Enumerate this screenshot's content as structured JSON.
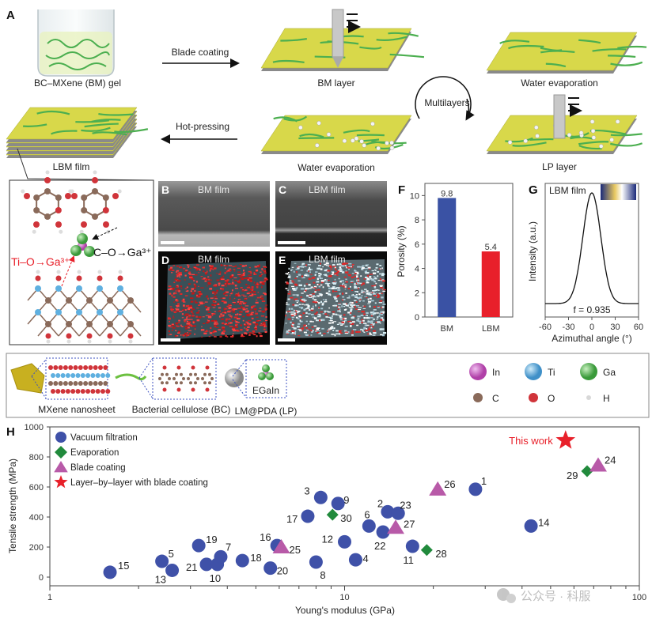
{
  "panel_letters": {
    "A": "A",
    "B": "B",
    "C": "C",
    "D": "D",
    "E": "E",
    "F": "F",
    "G": "G",
    "H": "H"
  },
  "panel_a": {
    "gel_label": "BC–MXene (BM) gel",
    "blade_coating": "Blade coating",
    "bm_layer": "BM layer",
    "water_evaporation_top": "Water evaporation",
    "multilayers": "Multilayers",
    "lp_layer": "LP layer",
    "water_evaporation_mid": "Water evaporation",
    "hot_pressing": "Hot-pressing",
    "lbm_film": "LBM film",
    "c_o_ga": "C–O→Ga³⁺",
    "ti_o_ga": "Ti–O→Ga³⁺",
    "colors": {
      "film": "#d8d84a",
      "fiber": "#4caf50",
      "base": "#8a8a8a",
      "ti_o_text": "#e8202a"
    }
  },
  "images": {
    "B": {
      "label": "BM film"
    },
    "C": {
      "label": "LBM film"
    },
    "D": {
      "label": "BM film"
    },
    "E": {
      "label": "LBM film"
    }
  },
  "legend_row": {
    "mxene": "MXene nanosheet",
    "bc": "Bacterial cellulose (BC)",
    "egain": "EGaIn",
    "lp": "LM@PDA (LP)",
    "atoms": [
      {
        "symbol": "In",
        "color": "#c85bc0"
      },
      {
        "symbol": "Ti",
        "color": "#5fb0e0"
      },
      {
        "symbol": "Ga",
        "color": "#5cbf5c"
      },
      {
        "symbol": "C",
        "color": "#8a6a5a"
      },
      {
        "symbol": "O",
        "color": "#d0343a"
      },
      {
        "symbol": "H",
        "color": "#d8d8d8"
      }
    ]
  },
  "watermark": "公众号 · 科服",
  "chart_data": [
    {
      "panel": "F",
      "type": "bar",
      "categories": [
        "BM",
        "LBM"
      ],
      "values": [
        9.8,
        5.4
      ],
      "data_labels": [
        "9.8",
        "5.4"
      ],
      "colors": [
        "#3a52a4",
        "#e8202a"
      ],
      "ylabel": "Porosity (%)",
      "ylim": [
        0,
        11
      ],
      "yticks": [
        0,
        2,
        4,
        6,
        8,
        10
      ]
    },
    {
      "panel": "G",
      "type": "line",
      "inset_label": "LBM film",
      "annotation": "f = 0.935",
      "xlabel": "Azimuthal angle (°)",
      "ylabel": "Intensity (a.u.)",
      "xlim": [
        -60,
        60
      ],
      "xticks": [
        -60,
        -30,
        0,
        30,
        60
      ],
      "peak_center": 0,
      "peak_half_width_at_base": 30
    },
    {
      "panel": "H",
      "type": "scatter",
      "xlabel": "Young's modulus (GPa)",
      "ylabel": "Tensile strength (MPa)",
      "xscale": "log",
      "xlim": [
        1,
        100
      ],
      "xticks": [
        1,
        10,
        100
      ],
      "ylim": [
        0,
        1000
      ],
      "yticks": [
        0,
        200,
        400,
        600,
        800,
        1000
      ],
      "legend_position": "top-left",
      "series": [
        {
          "name": "Vacuum filtration",
          "marker": "circle",
          "color": "#3f51a8"
        },
        {
          "name": "Evaporation",
          "marker": "diamond",
          "color": "#218a3c"
        },
        {
          "name": "Blade coating",
          "marker": "triangle",
          "color": "#b85aa8"
        },
        {
          "name": "Layer–by–layer with blade coating",
          "marker": "star",
          "color": "#e8202a"
        }
      ],
      "points": [
        {
          "label": "15",
          "x": 1.6,
          "y": 32,
          "series": 0
        },
        {
          "label": "5",
          "x": 2.4,
          "y": 105,
          "series": 0
        },
        {
          "label": "13",
          "x": 2.6,
          "y": 45,
          "series": 0
        },
        {
          "label": "19",
          "x": 3.2,
          "y": 210,
          "series": 0
        },
        {
          "label": "21",
          "x": 3.4,
          "y": 85,
          "series": 0
        },
        {
          "label": "10",
          "x": 3.7,
          "y": 85,
          "series": 0
        },
        {
          "label": "7",
          "x": 3.8,
          "y": 135,
          "series": 0
        },
        {
          "label": "18",
          "x": 4.5,
          "y": 110,
          "series": 0
        },
        {
          "label": "20",
          "x": 5.6,
          "y": 60,
          "series": 0
        },
        {
          "label": "16",
          "x": 5.9,
          "y": 210,
          "series": 0
        },
        {
          "label": "25",
          "x": 6.1,
          "y": 200,
          "series": 2
        },
        {
          "label": "17",
          "x": 7.5,
          "y": 405,
          "series": 0
        },
        {
          "label": "3",
          "x": 8.3,
          "y": 530,
          "series": 0
        },
        {
          "label": "8",
          "x": 8.0,
          "y": 100,
          "series": 0
        },
        {
          "label": "9",
          "x": 9.5,
          "y": 490,
          "series": 0
        },
        {
          "label": "30",
          "x": 9.1,
          "y": 415,
          "series": 1
        },
        {
          "label": "12",
          "x": 10.0,
          "y": 235,
          "series": 0
        },
        {
          "label": "4",
          "x": 10.9,
          "y": 115,
          "series": 0
        },
        {
          "label": "6",
          "x": 12.1,
          "y": 340,
          "series": 0
        },
        {
          "label": "22",
          "x": 13.5,
          "y": 300,
          "series": 0
        },
        {
          "label": "2",
          "x": 14.0,
          "y": 435,
          "series": 0
        },
        {
          "label": "23",
          "x": 15.2,
          "y": 425,
          "series": 0
        },
        {
          "label": "27",
          "x": 14.9,
          "y": 330,
          "series": 2
        },
        {
          "label": "11",
          "x": 17.0,
          "y": 205,
          "series": 0
        },
        {
          "label": "28",
          "x": 19.0,
          "y": 180,
          "series": 1
        },
        {
          "label": "26",
          "x": 20.7,
          "y": 585,
          "series": 2
        },
        {
          "label": "1",
          "x": 27.8,
          "y": 585,
          "series": 0
        },
        {
          "label": "14",
          "x": 42.9,
          "y": 340,
          "series": 0
        },
        {
          "label": "29",
          "x": 66.5,
          "y": 705,
          "series": 1
        },
        {
          "label": "24",
          "x": 72.5,
          "y": 745,
          "series": 2
        },
        {
          "label": "This work",
          "x": 56.2,
          "y": 910,
          "series": 3
        }
      ]
    }
  ]
}
